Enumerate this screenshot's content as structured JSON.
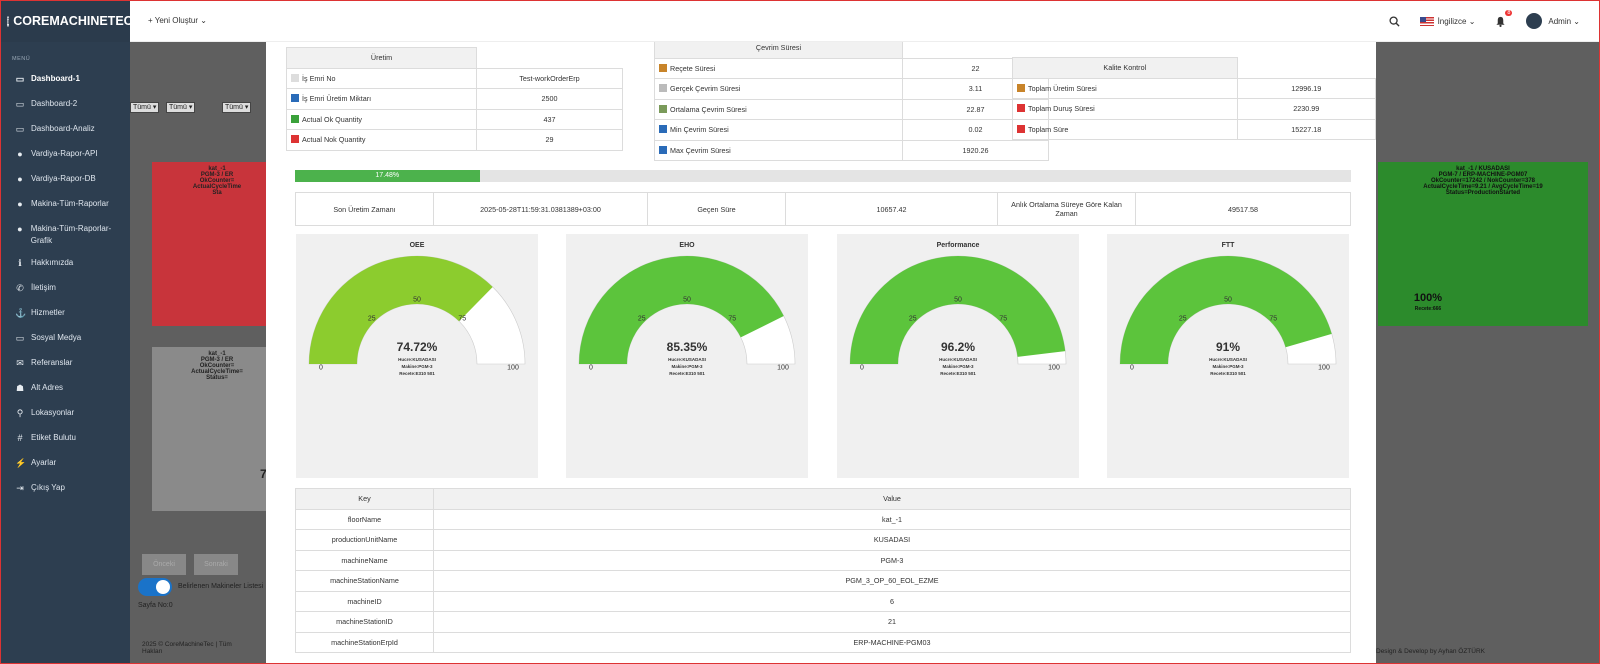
{
  "brand": "COREMACHINETEC",
  "menu_caption": "MENÜ",
  "nav": [
    {
      "icon": "monitor-icon",
      "glyph": "▭",
      "label": "Dashboard-1",
      "active": true
    },
    {
      "icon": "monitor-icon",
      "glyph": "▭",
      "label": "Dashboard-2"
    },
    {
      "icon": "monitor-icon",
      "glyph": "▭",
      "label": "Dashboard-Analiz"
    },
    {
      "icon": "globe-icon",
      "glyph": "●",
      "label": "Vardiya-Rapor-API"
    },
    {
      "icon": "globe-icon",
      "glyph": "●",
      "label": "Vardiya-Rapor-DB"
    },
    {
      "icon": "globe-icon",
      "glyph": "●",
      "label": "Makina-Tüm-Raporlar"
    },
    {
      "icon": "globe-icon",
      "glyph": "●",
      "label": "Makina-Tüm-Raporlar-Grafik"
    },
    {
      "icon": "info-icon",
      "glyph": "ℹ",
      "label": "Hakkımızda"
    },
    {
      "icon": "phone-icon",
      "glyph": "✆",
      "label": "İletişim"
    },
    {
      "icon": "anchor-icon",
      "glyph": "⚓",
      "label": "Hizmetler"
    },
    {
      "icon": "monitor-icon",
      "glyph": "▭",
      "label": "Sosyal Medya"
    },
    {
      "icon": "megaphone-icon",
      "glyph": "✉",
      "label": "Referanslar"
    },
    {
      "icon": "users-icon",
      "glyph": "☗",
      "label": "Alt Adres"
    },
    {
      "icon": "map-pin-icon",
      "glyph": "⚲",
      "label": "Lokasyonlar"
    },
    {
      "icon": "hashtag-icon",
      "glyph": "#",
      "label": "Etiket Bulutu"
    },
    {
      "icon": "plug-icon",
      "glyph": "⚡",
      "label": "Ayarlar"
    },
    {
      "icon": "logout-icon",
      "glyph": "⇥",
      "label": "Çıkış Yap"
    }
  ],
  "topbar": {
    "new_label": "+ Yeni Oluştur ⌄",
    "language": "İngilizce ⌄",
    "notifications": "8",
    "user": "Admin ⌄"
  },
  "background": {
    "filters": [
      "Tümü ▾",
      "Tümü ▾",
      "Tümü ▾"
    ],
    "red_card": "kat_-1\nPGM-3 / ER\nOkCounter=\nActualCycleTime\nSta",
    "gray_card": "kat_-1\nPGM-3 / ER\nOkCounter=\nActualCycleTime=\nStatus=",
    "green_card": "kat_-1 / KUSADASI\nPGM-7 / ERP-MACHINE-PGM07\nOkCounter=17242 / NokCounter=378\nActualCycleTime=9.21 / AvgCycleTime=19\nStatus=ProductionStarted",
    "green_value": "100%",
    "green_sub": "Recete:666",
    "gray_partial": "7",
    "button_prev": "Önceki",
    "button_next": "Sonraki",
    "toggle_label": "Belirlenen Makineler Listesi",
    "page_label": "Sayfa No:0",
    "footer_left": "2025 © CoreMachineTec | Tüm Hakları",
    "footer_right": "Design & Develop by Ayhan ÖZTÜRK"
  },
  "uretim": {
    "title": "Üretim",
    "rows": [
      {
        "icon": "document-icon",
        "color": "#ddd",
        "label": "İş Emri No",
        "value": "Test-workOrderErp"
      },
      {
        "icon": "box-icon",
        "color": "#2a6bb8",
        "label": "İş Emri Üretim Miktarı",
        "value": "2500"
      },
      {
        "icon": "check-icon",
        "color": "#3aa13a",
        "label": "Actual Ok Quantity",
        "value": "437"
      },
      {
        "icon": "x-icon",
        "color": "#d33",
        "label": "Actual Nok Quantity",
        "value": "29"
      }
    ]
  },
  "cevrim": {
    "title": "Çevrim Süresi",
    "rows": [
      {
        "icon": "hourglass-icon",
        "color": "#c8842a",
        "label": "Reçete Süresi",
        "value": "22"
      },
      {
        "icon": "clock-icon",
        "color": "#bbb",
        "label": "Gerçek Çevrim Süresi",
        "value": "3.11"
      },
      {
        "icon": "hourglass-icon",
        "color": "#7a9a5a",
        "label": "Ortalama Çevrim Süresi",
        "value": "22.87"
      },
      {
        "icon": "arrow-down-icon",
        "color": "#2a6bb8",
        "label": "Min Çevrim Süresi",
        "value": "0.02"
      },
      {
        "icon": "arrow-up-icon",
        "color": "#2a6bb8",
        "label": "Max Çevrim Süresi",
        "value": "1920.26"
      }
    ]
  },
  "kalite": {
    "title": "Kalite Kontrol",
    "rows": [
      {
        "icon": "factory-icon",
        "color": "#c8842a",
        "label": "Toplam Üretim Süresi",
        "value": "12996.19"
      },
      {
        "icon": "stop-icon",
        "color": "#d33",
        "label": "Toplam Duruş Süresi",
        "value": "2230.99"
      },
      {
        "icon": "alarm-clock-icon",
        "color": "#d33",
        "label": "Toplam Süre",
        "value": "15227.18"
      }
    ]
  },
  "progress": {
    "label": "17.48%",
    "value": 17.48
  },
  "info": {
    "last_prod_label": "Son Üretim Zamanı",
    "last_prod_value": "2025-05-28T11:59:31.0381389+03:00",
    "elapsed_label": "Geçen Süre",
    "elapsed_value": "10657.42",
    "remaining_label": "Anlık Ortalama Süreye Göre Kalan Zaman",
    "remaining_value": "49517.58"
  },
  "gauges": [
    {
      "title": "OEE",
      "value_label": "74.72%",
      "value": 74.72,
      "color": "#8ccc2e",
      "line1": "Hucre:KUSADASI",
      "line2": "Makine:PGM-3",
      "line3": "Recete:E310 501"
    },
    {
      "title": "EHO",
      "value_label": "85.35%",
      "value": 85.35,
      "color": "#5cc43c",
      "line1": "Hucre:KUSADASI",
      "line2": "Makine:PGM-3",
      "line3": "Recete:E310 501"
    },
    {
      "title": "Performance",
      "value_label": "96.2%",
      "value": 96.2,
      "color": "#5cc43c",
      "line1": "Hucre:KUSADASI",
      "line2": "Makine:PGM-3",
      "line3": "Recete:E310 501"
    },
    {
      "title": "FTT",
      "value_label": "91%",
      "value": 91,
      "color": "#5cc43c",
      "line1": "Hucre:KUSADASI",
      "line2": "Makine:PGM-3",
      "line3": "Recete:E310 501"
    }
  ],
  "gauge_ticks": [
    "0",
    "25",
    "50",
    "75",
    "100"
  ],
  "kv": {
    "key_header": "Key",
    "value_header": "Value",
    "rows": [
      {
        "key": "floorName",
        "value": "kat_-1"
      },
      {
        "key": "productionUnitName",
        "value": "KUSADASI"
      },
      {
        "key": "machineName",
        "value": "PGM-3"
      },
      {
        "key": "machineStationName",
        "value": "PGM_3_OP_60_EOL_EZME"
      },
      {
        "key": "machineID",
        "value": "6"
      },
      {
        "key": "machineStationID",
        "value": "21"
      },
      {
        "key": "machineStationErpId",
        "value": "ERP-MACHINE-PGM03"
      }
    ]
  }
}
